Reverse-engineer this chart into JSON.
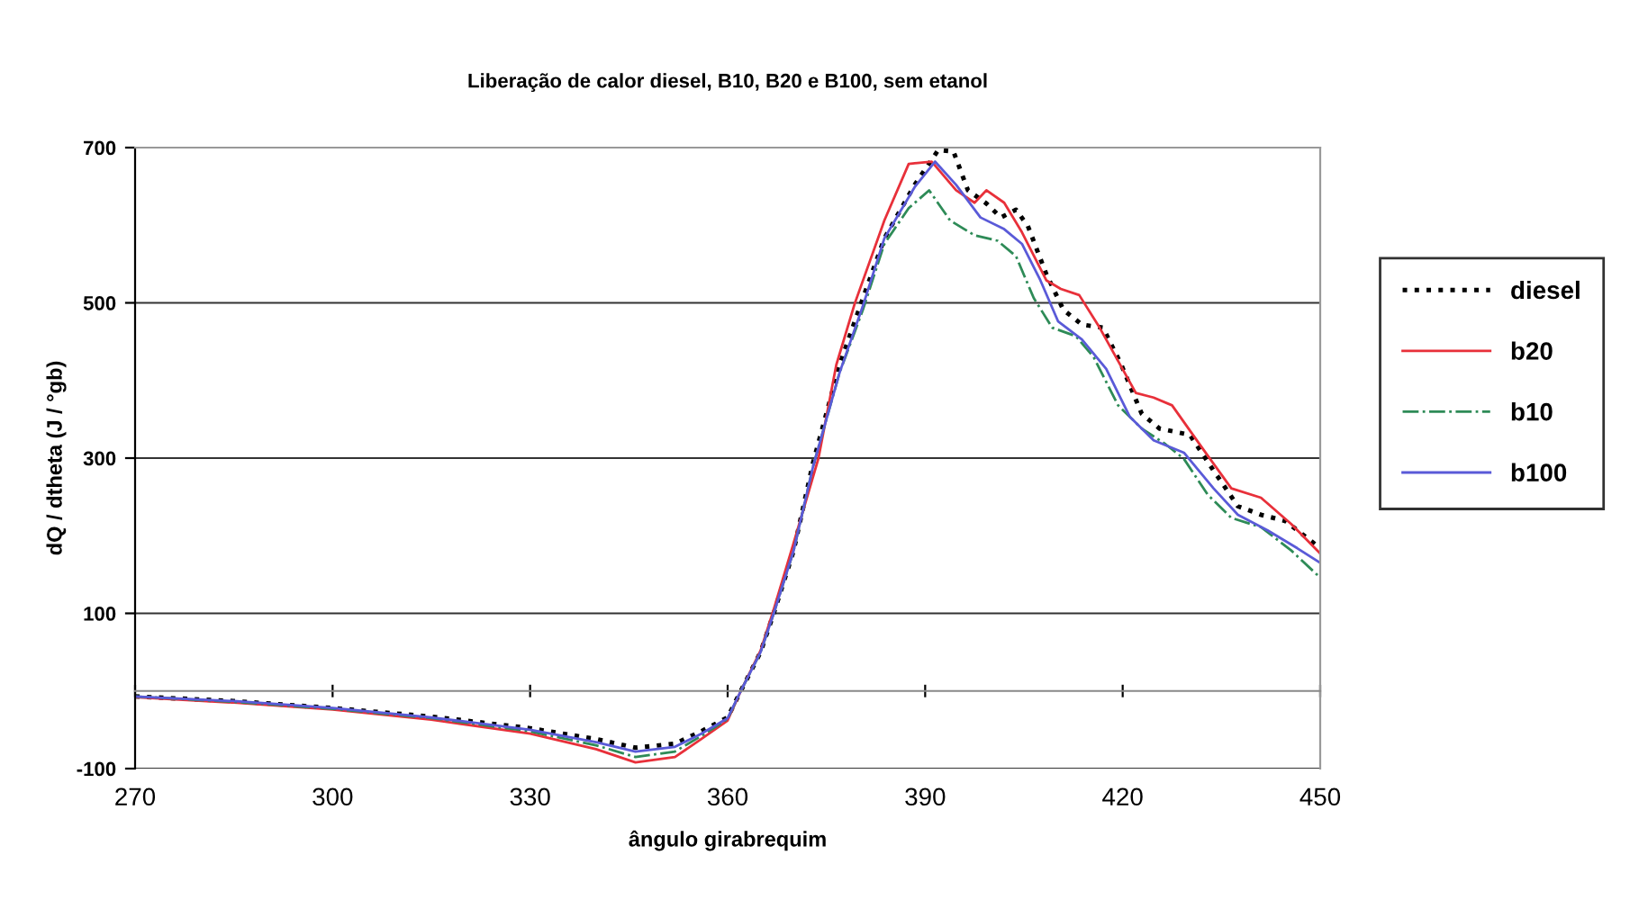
{
  "chart_data": {
    "type": "line",
    "title": "Liberação de calor diesel, B10, B20 e B100, sem etanol",
    "xlabel": "ângulo girabrequim",
    "ylabel": "dQ / dtheta (J / °gb)",
    "xlim": [
      270,
      450
    ],
    "xticks": [
      270,
      300,
      330,
      360,
      390,
      420,
      450
    ],
    "ylim": [
      -100,
      700
    ],
    "yticks": [
      -100,
      100,
      300,
      500,
      700
    ],
    "grid": "y",
    "legend": "right",
    "marker": "none",
    "series": [
      {
        "name": "diesel",
        "color": "#000000",
        "line_style": "dotted",
        "x": [
          270,
          285,
          300,
          315,
          330,
          340,
          346,
          352,
          356,
          360,
          362,
          365,
          367,
          370,
          373,
          377,
          380.3,
          383.8,
          388.4,
          392,
          394.3,
          396.5,
          399.3,
          401.5,
          403.8,
          405.6,
          408.4,
          411,
          413.8,
          417,
          419.7,
          422.9,
          425.6,
          430.2,
          433.8,
          437.5,
          441,
          444.7,
          450
        ],
        "values": [
          -7,
          -13,
          -22,
          -33,
          -48,
          -62,
          -73,
          -68,
          -52,
          -34,
          0,
          50,
          100,
          180,
          295,
          420,
          500,
          583,
          652,
          697,
          695,
          645,
          628,
          610,
          620,
          599,
          537,
          491,
          472,
          468,
          422,
          357,
          338,
          330,
          284,
          238,
          227,
          219,
          184
        ]
      },
      {
        "name": "b20",
        "color": "#e8303a",
        "line_style": "solid",
        "x": [
          270,
          285,
          300,
          315,
          330,
          340,
          346,
          352,
          356,
          360,
          362,
          365,
          367,
          370,
          373.8,
          376.5,
          379.3,
          383.8,
          387.5,
          391,
          394.7,
          397.5,
          399.3,
          402,
          404.7,
          408.4,
          410.6,
          413.4,
          416.5,
          422,
          424.7,
          427.5,
          432,
          436.5,
          441,
          445.6,
          450
        ],
        "values": [
          -8,
          -15,
          -24,
          -37,
          -55,
          -75,
          -92,
          -85,
          -62,
          -38,
          0,
          52,
          105,
          190,
          300,
          420,
          499,
          606,
          679,
          682,
          645,
          629,
          645,
          629,
          591,
          529,
          518,
          510,
          468,
          384,
          378,
          368,
          314,
          261,
          249,
          215,
          177
        ]
      },
      {
        "name": "b10",
        "color": "#2e8b57",
        "line_style": "dashdot",
        "x": [
          270,
          285,
          300,
          315,
          330,
          340,
          346,
          352,
          356,
          360,
          362,
          365,
          367,
          370,
          373,
          377,
          380.5,
          383.8,
          387.5,
          390.6,
          393.8,
          397.5,
          401,
          403.8,
          406.5,
          409.3,
          412.9,
          415.6,
          419.3,
          422.9,
          426.5,
          429.3,
          432.9,
          436.5,
          441,
          445.6,
          450
        ],
        "values": [
          -7,
          -14,
          -23,
          -35,
          -52,
          -70,
          -85,
          -78,
          -58,
          -36,
          0,
          50,
          100,
          180,
          290,
          410,
          490,
          576,
          622,
          645,
          606,
          587,
          580,
          560,
          506,
          468,
          457,
          430,
          368,
          338,
          318,
          299,
          253,
          223,
          211,
          181,
          146
        ]
      },
      {
        "name": "b100",
        "color": "#5a5ad8",
        "line_style": "solid",
        "x": [
          270,
          285,
          300,
          315,
          330,
          340,
          346,
          352,
          356,
          360,
          362,
          365,
          367,
          370,
          373,
          377,
          380.5,
          383.8,
          388.4,
          391.5,
          394.7,
          398.4,
          402,
          404.7,
          407.5,
          410.2,
          413.8,
          417.5,
          421.1,
          424.7,
          429.3,
          433.8,
          437.5,
          442,
          446.5,
          450
        ],
        "values": [
          -7,
          -13,
          -22,
          -34,
          -50,
          -66,
          -78,
          -72,
          -55,
          -35,
          0,
          50,
          100,
          180,
          290,
          410,
          495,
          583,
          649,
          682,
          652,
          610,
          595,
          576,
          529,
          476,
          453,
          415,
          353,
          323,
          307,
          261,
          227,
          207,
          184,
          165
        ]
      }
    ]
  }
}
